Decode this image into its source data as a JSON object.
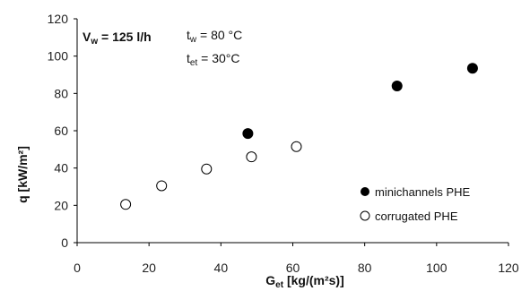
{
  "chart_data": {
    "type": "scatter",
    "title": "",
    "xlabel": {
      "main": "G",
      "sub": "et",
      "rest": "  [kg/(m²s)]"
    },
    "ylabel": {
      "main": "q",
      "rest": "  [kW/m²]"
    },
    "xlim": [
      0,
      120
    ],
    "ylim": [
      0,
      120
    ],
    "xticks": [
      "0",
      "20",
      "40",
      "60",
      "80",
      "100",
      "120"
    ],
    "yticks": [
      "0",
      "20",
      "40",
      "60",
      "80",
      "100",
      "120"
    ],
    "grid": false,
    "legend_position": "bottom-right",
    "annotations": {
      "vw": {
        "main": "V",
        "sub": "w",
        "rest": " = 125 l/h"
      },
      "tw": {
        "main": "t",
        "sub": "w",
        "rest": " = 80 °C"
      },
      "tet": {
        "main": "t",
        "sub": "et",
        "rest": " = 30°C"
      }
    },
    "series": [
      {
        "name": "minichannels PHE",
        "marker": "filled",
        "color": "#000000",
        "x": [
          47.5,
          89,
          110
        ],
        "y": [
          58.5,
          84,
          93.5
        ]
      },
      {
        "name": "corrugated PHE",
        "marker": "open",
        "color": "#000000",
        "x": [
          13.5,
          23.5,
          36,
          48.5,
          61
        ],
        "y": [
          20.5,
          30.5,
          39.5,
          46,
          51.5
        ]
      }
    ]
  }
}
